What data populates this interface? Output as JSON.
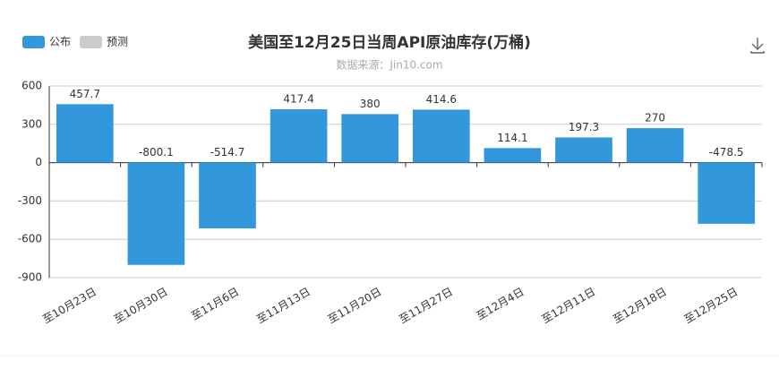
{
  "chart_data": {
    "type": "bar",
    "title": "美国至12月25日当周API原油库存(万桶)",
    "subtitle": "数据来源：Jin10.com",
    "categories": [
      "至10月23日",
      "至10月30日",
      "至11月6日",
      "至11月13日",
      "至11月20日",
      "至11月27日",
      "至12月4日",
      "至12月11日",
      "至12月18日",
      "至12月25日"
    ],
    "series": [
      {
        "name": "公布",
        "color": "#3398db",
        "values": [
          457.7,
          -800.1,
          -514.7,
          417.4,
          380,
          414.6,
          114.1,
          197.3,
          270,
          -478.5
        ]
      },
      {
        "name": "预测",
        "color": "#cccccc",
        "values": [
          null,
          null,
          null,
          null,
          null,
          null,
          null,
          null,
          null,
          null
        ]
      }
    ],
    "ylim": [
      -900,
      600
    ],
    "yticks": [
      600,
      300,
      0,
      -300,
      -600,
      -900
    ],
    "grid": true
  }
}
